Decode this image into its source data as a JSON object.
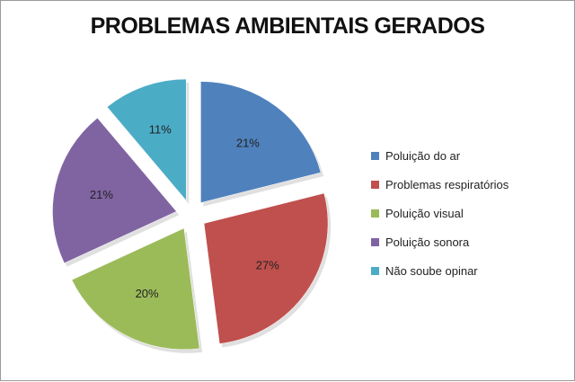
{
  "chart_data": {
    "type": "pie",
    "exploded": true,
    "title": "PROBLEMAS AMBIENTAIS GERADOS",
    "legend_position": "right",
    "slices": [
      {
        "label": "Poluição do ar",
        "value": 21,
        "display": "21%",
        "color": "#4f81bd"
      },
      {
        "label": "Problemas respiratórios",
        "value": 27,
        "display": "27%",
        "color": "#c0504d"
      },
      {
        "label": "Poluição visual",
        "value": 20,
        "display": "20%",
        "color": "#9bbb59"
      },
      {
        "label": "Poluição sonora",
        "value": 21,
        "display": "21%",
        "color": "#8064a2"
      },
      {
        "label": "Não soube opinar",
        "value": 11,
        "display": "11%",
        "color": "#4bacc6"
      }
    ]
  }
}
